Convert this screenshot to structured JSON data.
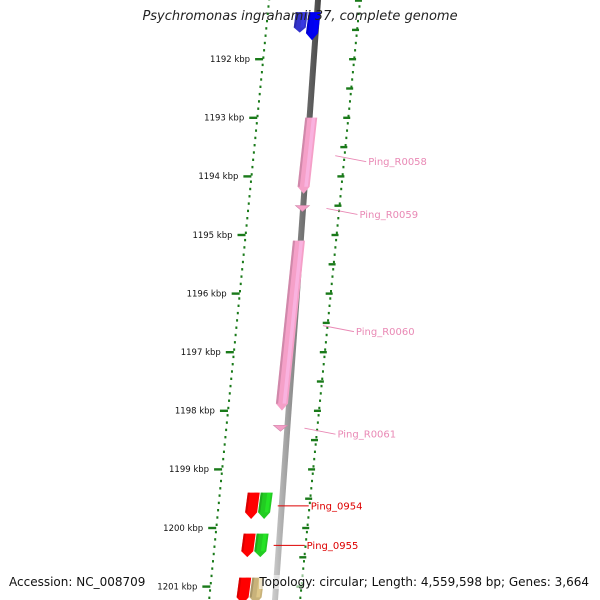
{
  "header": {
    "title": "Psychromonas ingrahamii 37, complete genome"
  },
  "footer": {
    "accession": "Accession: NC_008709",
    "summary": "Topology: circular; Length: 4,559,598 bp; Genes: 3,664"
  },
  "scale": {
    "ticks": [
      "1192 kbp",
      "1193 kbp",
      "1194 kbp",
      "1195 kbp",
      "1196 kbp",
      "1197 kbp",
      "1198 kbp",
      "1199 kbp",
      "1200 kbp",
      "1201 kbp"
    ]
  },
  "features": [
    {
      "label": "",
      "strand": "minus",
      "color": "#3333cc",
      "kind": "gene",
      "start_kbp": 1191.2,
      "end_kbp": 1191.55
    },
    {
      "label": "",
      "strand": "plus",
      "color": "#0000ee",
      "kind": "gene",
      "start_kbp": 1191.2,
      "end_kbp": 1191.68
    },
    {
      "label": "Ping_R0058",
      "strand": "minus",
      "color": "#f5a0c8",
      "label_color": "#e989b5",
      "kind": "rna",
      "start_kbp": 1193.0,
      "end_kbp": 1194.3
    },
    {
      "label": "Ping_R0059",
      "strand": "minus",
      "color": "#f5a0c8",
      "label_color": "#e989b5",
      "kind": "rna",
      "start_kbp": 1194.5,
      "end_kbp": 1194.6
    },
    {
      "label": "Ping_R0060",
      "strand": "minus",
      "color": "#f5a0c8",
      "label_color": "#e989b5",
      "kind": "rna",
      "start_kbp": 1195.1,
      "end_kbp": 1198.0
    },
    {
      "label": "Ping_R0061",
      "strand": "minus",
      "color": "#f5a0c8",
      "label_color": "#e989b5",
      "kind": "rna",
      "start_kbp": 1198.25,
      "end_kbp": 1198.35
    },
    {
      "label": "Ping_0954",
      "strand": "minus",
      "color": "#ff0000",
      "label_color": "#dd0000",
      "kind": "gene",
      "start_kbp": 1199.4,
      "end_kbp": 1199.85
    },
    {
      "label": "",
      "strand": "plus",
      "color": "#22cc22",
      "kind": "gene",
      "start_kbp": 1199.4,
      "end_kbp": 1199.85
    },
    {
      "label": "Ping_0955",
      "strand": "minus",
      "color": "#ff0000",
      "label_color": "#dd0000",
      "kind": "gene",
      "start_kbp": 1200.1,
      "end_kbp": 1200.5
    },
    {
      "label": "",
      "strand": "plus",
      "color": "#22cc22",
      "kind": "gene",
      "start_kbp": 1200.1,
      "end_kbp": 1200.5
    },
    {
      "label": "",
      "strand": "minus",
      "color": "#ff0000",
      "kind": "gene",
      "start_kbp": 1200.85,
      "end_kbp": 1201.3
    },
    {
      "label": "",
      "strand": "plus",
      "color": "#c8b27a",
      "kind": "gene",
      "start_kbp": 1200.85,
      "end_kbp": 1201.3
    }
  ],
  "colors": {
    "backbone": "#7a7a7a",
    "ticks": "#1a7a1a",
    "tick_label": "#111111"
  }
}
